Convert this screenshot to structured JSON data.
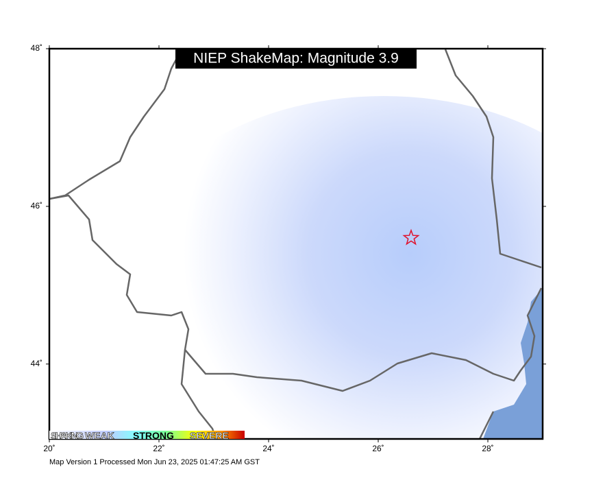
{
  "map": {
    "title": "NIEP ShakeMap: Magnitude 3.9",
    "xlim": [
      20,
      29
    ],
    "ylim": [
      43.05,
      48
    ],
    "xticks": [
      {
        "value": 20,
        "label": "20˚"
      },
      {
        "value": 22,
        "label": "22˚"
      },
      {
        "value": 24,
        "label": "24˚"
      },
      {
        "value": 26,
        "label": "26˚"
      },
      {
        "value": 28,
        "label": "28˚"
      }
    ],
    "yticks": [
      {
        "value": 44,
        "label": "44˚"
      },
      {
        "value": 46,
        "label": "46˚"
      },
      {
        "value": 48,
        "label": "48˚"
      }
    ],
    "epicenter": {
      "lon": 26.6,
      "lat": 45.6,
      "color": "#e0102a"
    },
    "legend": [
      "SHAKING",
      "WEAK",
      "STRONG",
      "SEVERE"
    ],
    "footer": "Map Version 1 Processed Mon Jun 23, 2025 01:47:25 AM GST"
  }
}
